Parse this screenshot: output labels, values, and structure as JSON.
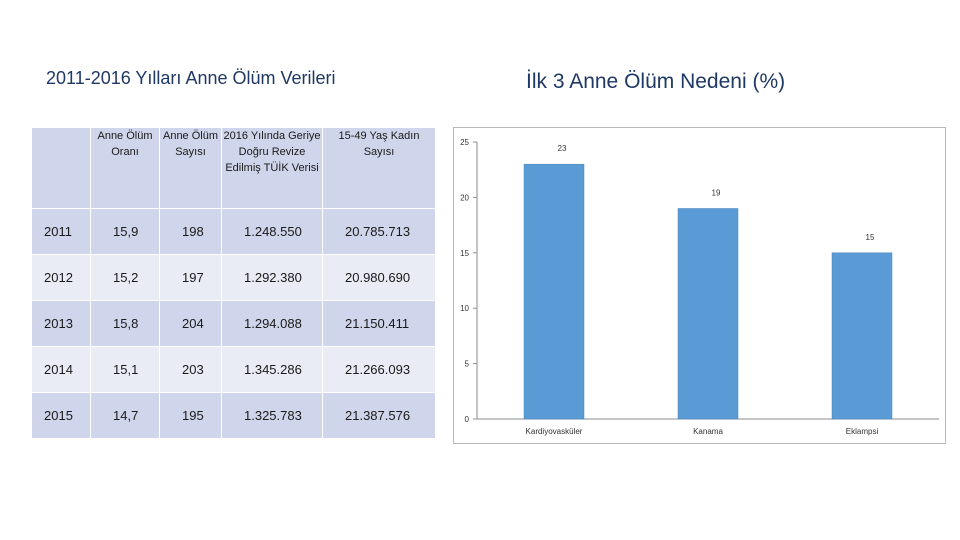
{
  "titles": {
    "left": "2011-2016 Yılları Anne Ölüm Verileri",
    "right": "İlk 3 Anne Ölüm Nedeni (%)"
  },
  "table": {
    "headers": [
      "",
      "Anne Ölüm Oranı",
      "Anne Ölüm Sayısı",
      "2016 Yılında Geriye Doğru Revize Edilmiş TÜİK Verisi",
      "15-49 Yaş Kadın Sayısı"
    ],
    "rows": [
      [
        "2011",
        "15,9",
        "198",
        "1.248.550",
        "20.785.713"
      ],
      [
        "2012",
        "15,2",
        "197",
        "1.292.380",
        "20.980.690"
      ],
      [
        "2013",
        "15,8",
        "204",
        "1.294.088",
        "21.150.411"
      ],
      [
        "2014",
        "15,1",
        "203",
        "1.345.286",
        "21.266.093"
      ],
      [
        "2015",
        "14,7",
        "195",
        "1.325.783",
        "21.387.576"
      ]
    ]
  },
  "chart_data": {
    "type": "bar",
    "categories": [
      "Kardiyovasküler",
      "Kanama",
      "Eklampsi"
    ],
    "values": [
      23,
      19,
      15
    ],
    "data_labels": [
      "23",
      "19",
      "15"
    ],
    "title": "İlk 3 Anne Ölüm Nedeni (%)",
    "xlabel": "",
    "ylabel": "",
    "ylim": [
      0,
      25
    ],
    "yticks": [
      0,
      5,
      10,
      15,
      20,
      25
    ],
    "grid": false,
    "legend": "none",
    "bar_color": "#5b9bd5"
  }
}
